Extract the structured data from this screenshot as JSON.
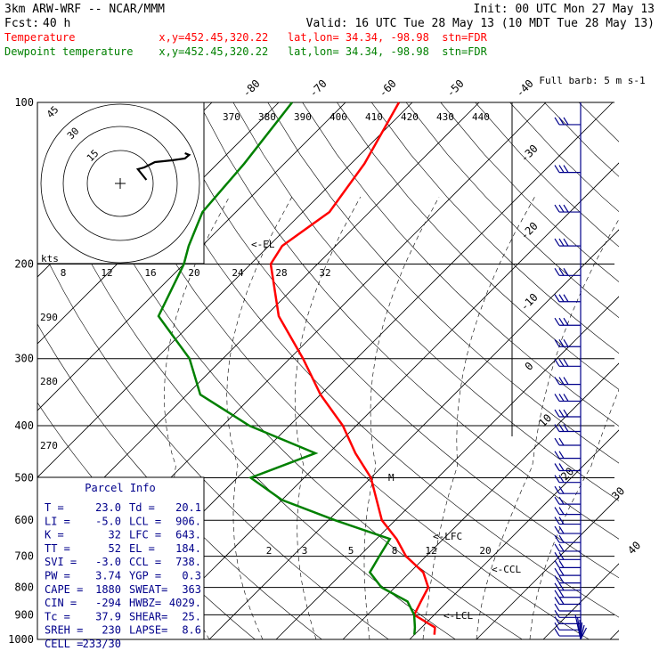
{
  "header": {
    "model": "3km ARW-WRF -- NCAR/MMM",
    "init": "Init: 00 UTC Mon 27 May 13",
    "fcst_label": "Fcst:",
    "fcst_value": "40 h",
    "valid": "Valid: 16 UTC Tue 28 May 13 (10 MDT Tue 28 May 13)",
    "temp_line": "Temperature             x,y=452.45,320.22   lat,lon= 34.34, -98.98  stn=FDR",
    "dew_line": "Dewpoint temperature    x,y=452.45,320.22   lat,lon= 34.34, -98.98  stn=FDR"
  },
  "colors": {
    "temperature": "#ff0000",
    "dewpoint": "#008000",
    "parcel": "#00008b",
    "wind": "#00008b"
  },
  "chart_data": {
    "type": "skew-t",
    "pressure_levels": [
      100,
      200,
      300,
      400,
      500,
      600,
      700,
      800,
      900,
      1000
    ],
    "skewed_temp_ticks": [
      "-80",
      "-70",
      "-60",
      "-50",
      "-40",
      "-30",
      "-20",
      "-10",
      "0",
      "10",
      "20",
      "30",
      "40"
    ],
    "theta_e_labels": [
      "370",
      "380",
      "390",
      "400",
      "410",
      "420",
      "430",
      "440"
    ],
    "theta_e_left_labels": [
      "290",
      "280",
      "270"
    ],
    "mixing_ratio_labels": [
      "2",
      "3",
      "5",
      "8",
      "12",
      "20"
    ],
    "hodograph_speed_labels": [
      "8",
      "12",
      "16",
      "20",
      "24",
      "28",
      "32"
    ],
    "hodograph_ring_labels": [
      "15",
      "30",
      "45"
    ],
    "kts_label": "kts",
    "barb_legend": "Full barb: 5 m s-1",
    "annotations": {
      "el": "<-EL",
      "lfc": "<-LFC",
      "ccl": "<-CCL",
      "lcl": "<-LCL",
      "m": "M"
    },
    "temperature_profile": [
      {
        "p": 100,
        "t": -62
      },
      {
        "p": 130,
        "t": -58
      },
      {
        "p": 160,
        "t": -56
      },
      {
        "p": 185,
        "t": -58
      },
      {
        "p": 200,
        "t": -57
      },
      {
        "p": 250,
        "t": -48
      },
      {
        "p": 300,
        "t": -38
      },
      {
        "p": 350,
        "t": -30
      },
      {
        "p": 400,
        "t": -22
      },
      {
        "p": 450,
        "t": -16
      },
      {
        "p": 500,
        "t": -10
      },
      {
        "p": 600,
        "t": -2
      },
      {
        "p": 650,
        "t": 3
      },
      {
        "p": 700,
        "t": 7
      },
      {
        "p": 750,
        "t": 12
      },
      {
        "p": 800,
        "t": 15
      },
      {
        "p": 850,
        "t": 16
      },
      {
        "p": 900,
        "t": 17
      },
      {
        "p": 950,
        "t": 22
      },
      {
        "p": 980,
        "t": 23
      }
    ],
    "dewpoint_profile": [
      {
        "p": 100,
        "t": -78
      },
      {
        "p": 130,
        "t": -76
      },
      {
        "p": 160,
        "t": -75
      },
      {
        "p": 185,
        "t": -72
      },
      {
        "p": 200,
        "t": -70
      },
      {
        "p": 250,
        "t": -66
      },
      {
        "p": 300,
        "t": -55
      },
      {
        "p": 350,
        "t": -48
      },
      {
        "p": 400,
        "t": -36
      },
      {
        "p": 450,
        "t": -22
      },
      {
        "p": 500,
        "t": -28
      },
      {
        "p": 550,
        "t": -20
      },
      {
        "p": 600,
        "t": -9
      },
      {
        "p": 650,
        "t": 2
      },
      {
        "p": 700,
        "t": 3
      },
      {
        "p": 750,
        "t": 4
      },
      {
        "p": 800,
        "t": 8
      },
      {
        "p": 850,
        "t": 14
      },
      {
        "p": 900,
        "t": 17
      },
      {
        "p": 950,
        "t": 19
      },
      {
        "p": 980,
        "t": 20
      }
    ],
    "hodograph_trace": [
      {
        "u": 6,
        "v": 2
      },
      {
        "u": 4,
        "v": 5
      },
      {
        "u": 2,
        "v": 8
      },
      {
        "u": 5,
        "v": 9
      },
      {
        "u": 10,
        "v": 12
      },
      {
        "u": 18,
        "v": 13
      },
      {
        "u": 24,
        "v": 14
      },
      {
        "u": 26,
        "v": 16
      },
      {
        "u": 24,
        "v": 17
      }
    ],
    "wind_barbs": [
      {
        "p": 100,
        "speed": 15
      },
      {
        "p": 150,
        "speed": 20
      },
      {
        "p": 200,
        "speed": 20
      },
      {
        "p": 250,
        "speed": 15
      },
      {
        "p": 300,
        "speed": 15
      },
      {
        "p": 350,
        "speed": 15
      },
      {
        "p": 400,
        "speed": 15
      },
      {
        "p": 450,
        "speed": 10
      },
      {
        "p": 500,
        "speed": 10
      },
      {
        "p": 600,
        "speed": 10
      },
      {
        "p": 700,
        "speed": 10
      },
      {
        "p": 800,
        "speed": 10
      },
      {
        "p": 900,
        "speed": 5
      },
      {
        "p": 1000,
        "speed": 5
      }
    ]
  },
  "parcel_info": {
    "title": "Parcel Info",
    "rows": [
      [
        "T    =",
        "23.0",
        "Td  =",
        "20.1"
      ],
      [
        "LI   =",
        "-5.0",
        "LCL =",
        "906."
      ],
      [
        "K    =",
        "32",
        "LFC =",
        "643."
      ],
      [
        "TT   =",
        "52",
        "EL  =",
        "184."
      ],
      [
        "SVI  =",
        "-3.0",
        "CCL =",
        "738."
      ],
      [
        "PW   =",
        "3.74",
        "YGP =",
        "0.3"
      ],
      [
        "CAPE =",
        "1880",
        "SWEAT=",
        "363"
      ],
      [
        "CIN  =",
        "-294",
        "HWBZ=",
        "4029."
      ],
      [
        "Tc   =",
        "37.9",
        "SHEAR=",
        "25."
      ],
      [
        "SREH =",
        "230",
        "LAPSE=",
        "8.6"
      ],
      [
        "CELL =",
        "233/30",
        "",
        ""
      ]
    ]
  }
}
